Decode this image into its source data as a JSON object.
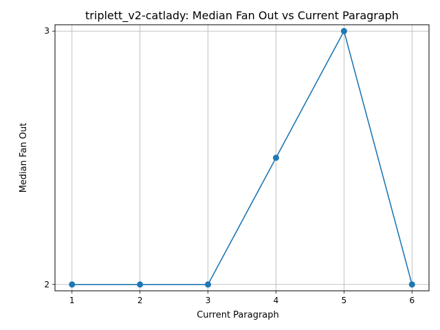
{
  "chart_data": {
    "type": "line",
    "title": "triplett_v2-catlady: Median Fan Out vs Current Paragraph",
    "xlabel": "Current Paragraph",
    "ylabel": "Median Fan Out",
    "x": [
      1,
      2,
      3,
      4,
      5,
      6
    ],
    "series": [
      {
        "values": [
          2,
          2,
          2,
          2.5,
          3,
          2
        ]
      }
    ],
    "xticks": [
      "1",
      "2",
      "3",
      "4",
      "5",
      "6"
    ],
    "yticks": [
      "2",
      "3"
    ],
    "xlim": [
      0.75,
      6.25
    ],
    "ylim": [
      1.975,
      3.025
    ],
    "grid": true,
    "marker": "circle",
    "line_color": "#1f77b4"
  }
}
